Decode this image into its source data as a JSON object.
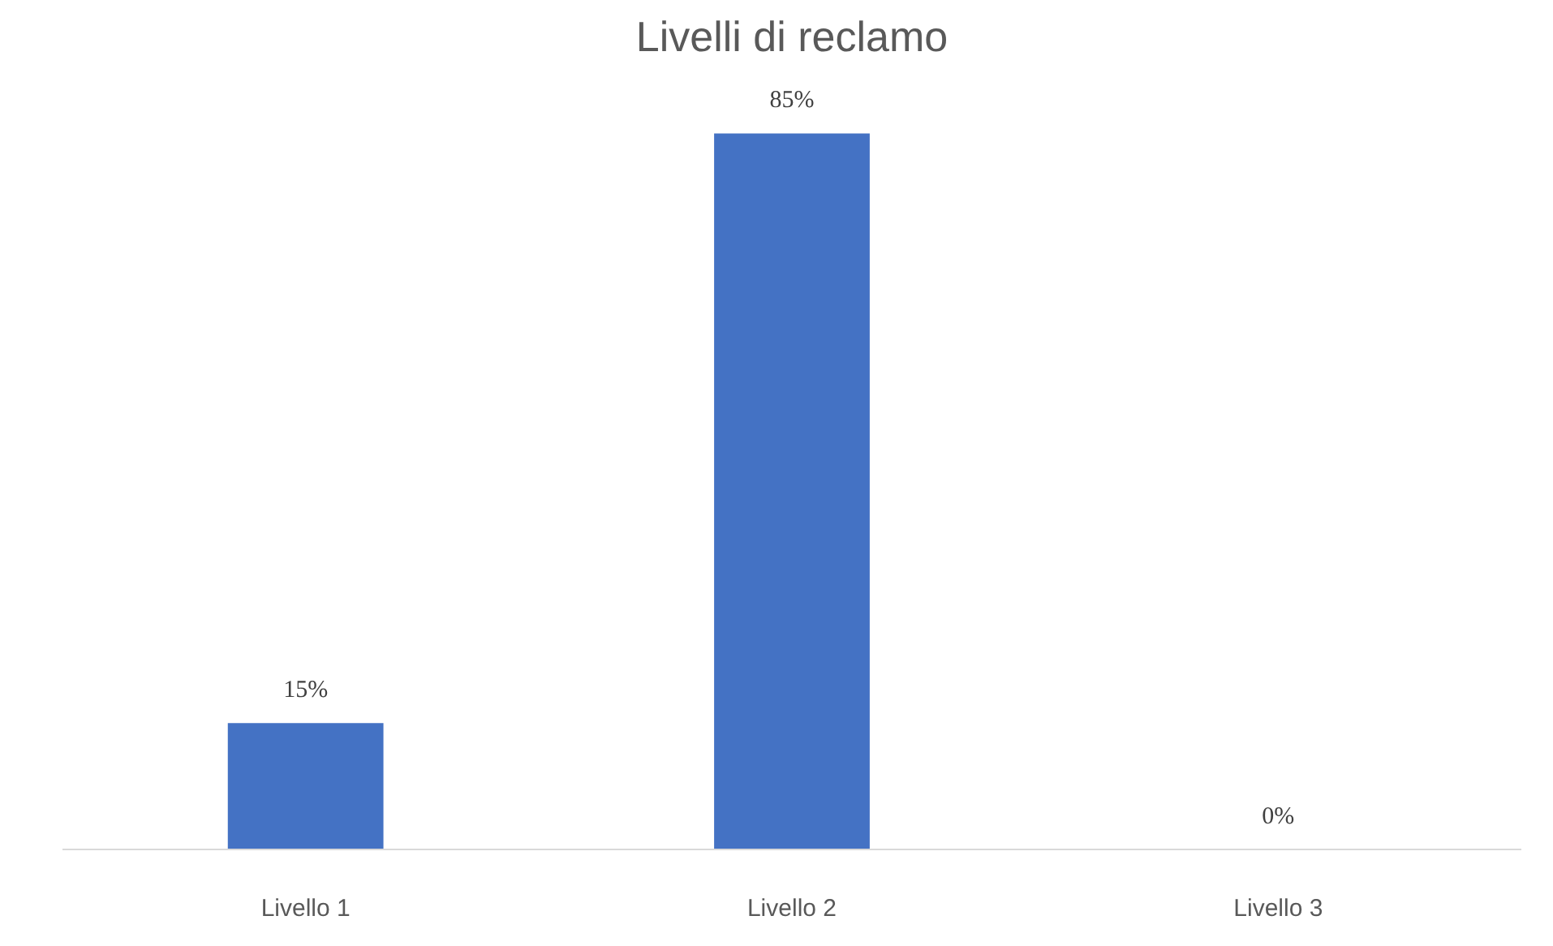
{
  "chart_data": {
    "type": "bar",
    "title": "Livelli di reclamo",
    "categories": [
      "Livello 1",
      "Livello 2",
      "Livello 3"
    ],
    "values": [
      15,
      85,
      0
    ],
    "value_labels": [
      "15%",
      "85%",
      "0%"
    ],
    "color": "#4472c4",
    "grid": false
  }
}
